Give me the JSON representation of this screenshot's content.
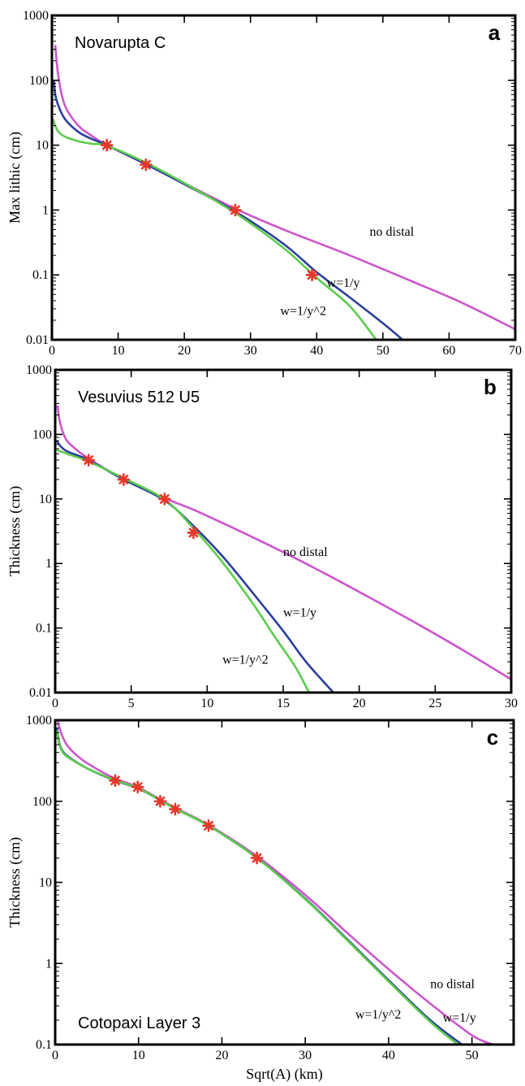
{
  "chart_data": [
    {
      "type": "line",
      "panel_letter": "a",
      "title": "Novarupta C",
      "xlabel": "",
      "ylabel": "Max lithic (cm)",
      "xlim": [
        0,
        70
      ],
      "ylim": [
        0.01,
        1000
      ],
      "y_scale": "log",
      "grid": false,
      "x_ticks": [
        "0",
        "10",
        "20",
        "30",
        "40",
        "50",
        "60",
        "70"
      ],
      "y_ticks": [
        "0.01",
        "0.1",
        "1",
        "10",
        "100",
        "1000"
      ],
      "observations": {
        "x": [
          8.3,
          14.2,
          27.7,
          39.3
        ],
        "y": [
          10,
          5,
          1,
          0.1
        ]
      },
      "series": [
        {
          "label": "no distal",
          "color": "#cc55cc",
          "x": [
            0.5,
            1,
            2,
            4,
            6,
            8.3,
            14,
            20,
            27.7,
            35,
            45,
            55,
            62,
            70
          ],
          "y": [
            350,
            110,
            40,
            20,
            14,
            10,
            5.2,
            2.6,
            1.05,
            0.5,
            0.2,
            0.075,
            0.037,
            0.0145
          ]
        },
        {
          "label": "w=1/y",
          "color": "#2a3f9f",
          "x": [
            0.3,
            0.5,
            1,
            2,
            4,
            6,
            8.3,
            14,
            20,
            27.7,
            35,
            40,
            45,
            50,
            53
          ],
          "y": [
            100,
            60,
            40,
            25,
            16,
            12.5,
            10,
            5.2,
            2.5,
            0.95,
            0.3,
            0.11,
            0.045,
            0.018,
            0.01
          ]
        },
        {
          "label": "w=1/y^2",
          "color": "#5ccc4c",
          "x": [
            0.2,
            0.5,
            1,
            2,
            4,
            6,
            8.3,
            14,
            20,
            27.7,
            35,
            40,
            45,
            49
          ],
          "y": [
            25,
            20,
            16,
            13.5,
            11.5,
            10.5,
            9.8,
            5.5,
            2.6,
            0.9,
            0.26,
            0.09,
            0.033,
            0.01
          ]
        }
      ],
      "annotations": [
        {
          "text": "no distal",
          "x": 48,
          "y": 0.4
        },
        {
          "text": "w=1/y",
          "x": 41.5,
          "y": 0.065
        },
        {
          "text": "w=1/y^2",
          "x": 34.5,
          "y": 0.024
        }
      ]
    },
    {
      "type": "line",
      "panel_letter": "b",
      "title": "Vesuvius 512 U5",
      "xlabel": "",
      "ylabel": "Thickness (cm)",
      "xlim": [
        0,
        30
      ],
      "ylim": [
        0.01,
        1000
      ],
      "y_scale": "log",
      "grid": false,
      "x_ticks": [
        "0",
        "5",
        "10",
        "15",
        "20",
        "25",
        "30"
      ],
      "y_ticks": [
        "0.01",
        "0.1",
        "1",
        "10",
        "100",
        "1000"
      ],
      "observations": {
        "x": [
          2.2,
          4.5,
          7.2,
          9.1
        ],
        "y": [
          40,
          20,
          10,
          3
        ]
      },
      "series": [
        {
          "label": "no distal",
          "color": "#cc55cc",
          "x": [
            0.15,
            0.3,
            0.6,
            1,
            2.2,
            4.5,
            7.2,
            9.1,
            12,
            15,
            18,
            21,
            24,
            27,
            30
          ],
          "y": [
            280,
            160,
            95,
            70,
            42,
            20.5,
            10.3,
            6.8,
            3.3,
            1.5,
            0.65,
            0.27,
            0.11,
            0.043,
            0.016
          ]
        },
        {
          "label": "w=1/y",
          "color": "#2a3f9f",
          "x": [
            0.1,
            0.3,
            0.6,
            1,
            2.2,
            4.5,
            7.2,
            9.1,
            11,
            13,
            15,
            16.5,
            18.3
          ],
          "y": [
            80,
            68,
            58,
            52,
            40,
            20,
            9.5,
            3.8,
            1.3,
            0.35,
            0.09,
            0.03,
            0.01
          ]
        },
        {
          "label": "w=1/y^2",
          "color": "#5ccc4c",
          "x": [
            0.1,
            0.3,
            0.6,
            1,
            2.2,
            4.5,
            7.2,
            9.1,
            11,
            13,
            14.5,
            15.8,
            16.7
          ],
          "y": [
            58,
            55,
            52,
            48,
            38,
            21,
            9.8,
            3.5,
            1.05,
            0.24,
            0.07,
            0.025,
            0.01
          ]
        }
      ],
      "annotations": [
        {
          "text": "no distal",
          "x": 15,
          "y": 1.3
        },
        {
          "text": "w=1/y",
          "x": 15,
          "y": 0.15
        },
        {
          "text": "w=1/y^2",
          "x": 11,
          "y": 0.028
        }
      ]
    },
    {
      "type": "line",
      "panel_letter": "c",
      "title": "Cotopaxi Layer 3",
      "xlabel": "Sqrt(A) (km)",
      "ylabel": "Thickness (cm)",
      "xlim": [
        0,
        55
      ],
      "ylim": [
        0.1,
        1000
      ],
      "y_scale": "log",
      "grid": false,
      "x_ticks": [
        "0",
        "10",
        "20",
        "30",
        "40",
        "50"
      ],
      "y_ticks": [
        "0.1",
        "1",
        "10",
        "100",
        "1000"
      ],
      "observations": {
        "x": [
          7.2,
          9.9,
          12.6,
          14.4,
          18.4,
          24.2
        ],
        "y": [
          180,
          150,
          100,
          80,
          50,
          20
        ]
      },
      "series": [
        {
          "label": "no distal",
          "color": "#cc55cc",
          "x": [
            0.3,
            0.7,
            1.5,
            3,
            5,
            7.2,
            9.9,
            12.6,
            14.4,
            18.4,
            24.2,
            30,
            35,
            40,
            45,
            50,
            52.5
          ],
          "y": [
            1000,
            700,
            480,
            340,
            250,
            190,
            150,
            105,
            83,
            51,
            21,
            7,
            2.4,
            0.85,
            0.32,
            0.13,
            0.1
          ]
        },
        {
          "label": "w=1/y",
          "color": "#2a3f9f",
          "x": [
            0.2,
            0.5,
            1,
            2,
            4,
            7.2,
            9.9,
            12.6,
            14.4,
            18.4,
            24.2,
            30,
            35,
            40,
            45,
            48.8
          ],
          "y": [
            800,
            520,
            400,
            330,
            250,
            180,
            145,
            103,
            81,
            50,
            20,
            6.3,
            2,
            0.62,
            0.2,
            0.1
          ]
        },
        {
          "label": "w=1/y^2",
          "color": "#5ccc4c",
          "x": [
            0.2,
            0.5,
            1,
            2,
            4,
            7.2,
            9.9,
            12.6,
            14.4,
            18.4,
            24.2,
            30,
            35,
            40,
            45,
            48.3
          ],
          "y": [
            750,
            500,
            390,
            325,
            250,
            182,
            146,
            103,
            81,
            50,
            20,
            6.2,
            1.95,
            0.6,
            0.19,
            0.1
          ]
        }
      ],
      "annotations": [
        {
          "text": "no distal",
          "x": 45,
          "y": 0.5
        },
        {
          "text": "w=1/y^2",
          "x": 36,
          "y": 0.21
        },
        {
          "text": "w=1/y",
          "x": 46.5,
          "y": 0.19
        }
      ]
    }
  ]
}
